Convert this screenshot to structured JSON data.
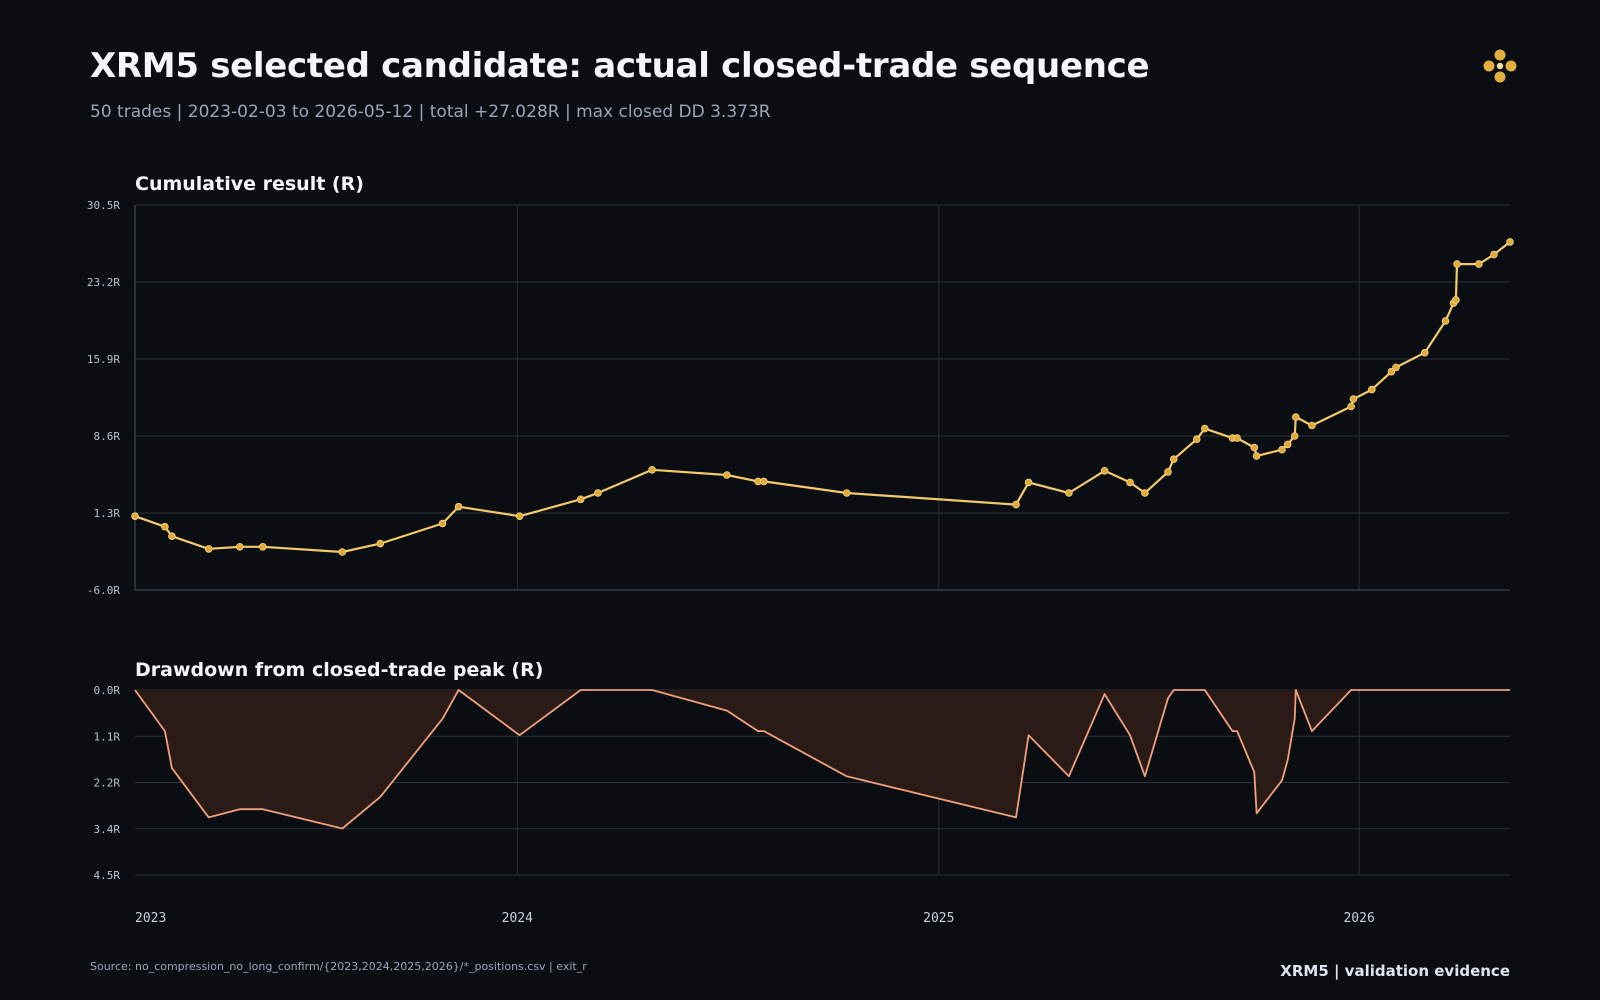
{
  "header": {
    "title": "XRM5 selected candidate: actual closed-trade sequence",
    "subtitle": "50 trades | 2023-02-03 to 2026-05-12 | total +27.028R | max closed DD 3.373R",
    "logo_icon": "four-dot-diamond-icon"
  },
  "footer": {
    "source": "Source: no_compression_no_long_confirm/{2023,2024,2025,2026}/*_positions.csv | exit_r",
    "badge": "XRM5 | validation evidence"
  },
  "colors": {
    "background": "#0a0d12",
    "equity_line": "#f3c96b",
    "equity_marker": "#e0a93a",
    "drawdown_line": "#f0a07a",
    "drawdown_fill": "#2a1b16",
    "grid": "#2a313b"
  },
  "chart_data": [
    {
      "type": "line",
      "title": "Cumulative result (R)",
      "ylim": [
        -6.0,
        30.5
      ],
      "y_ticks": [
        "30.5R",
        "23.2R",
        "15.9R",
        "8.6R",
        "1.3R",
        "-6.0R"
      ],
      "x_ticks": [
        "2023",
        "2024",
        "2025",
        "2026"
      ],
      "x_tick_dates": [
        "2023-01-01",
        "2024-01-01",
        "2025-01-01",
        "2026-01-01"
      ],
      "x_range": [
        "2023-02-03",
        "2026-05-12"
      ],
      "grid": true,
      "markers": true,
      "series": [
        {
          "x": [
            "2023-02-03",
            "2023-03-01",
            "2023-03-07",
            "2023-04-08",
            "2023-05-05",
            "2023-05-25",
            "2023-08-02",
            "2023-09-04",
            "2023-10-28",
            "2023-11-11",
            "2024-01-03",
            "2024-02-25",
            "2024-03-11",
            "2024-04-27",
            "2024-07-01",
            "2024-07-28",
            "2024-08-02",
            "2024-10-13",
            "2025-03-09",
            "2025-03-20",
            "2025-04-24",
            "2025-05-25",
            "2025-06-16",
            "2025-06-29",
            "2025-07-19",
            "2025-07-24",
            "2025-08-13",
            "2025-08-20",
            "2025-09-13",
            "2025-09-17",
            "2025-10-02",
            "2025-10-04",
            "2025-10-26",
            "2025-10-31",
            "2025-11-06",
            "2025-11-07",
            "2025-11-21",
            "2025-12-25",
            "2025-12-27",
            "2026-01-12",
            "2026-01-29",
            "2026-02-02",
            "2026-02-27",
            "2026-03-17",
            "2026-03-24",
            "2026-03-26",
            "2026-03-27",
            "2026-04-15",
            "2026-04-28",
            "2026-05-12"
          ],
          "y": [
            1.0,
            0.0,
            -0.9,
            -2.1,
            -1.9,
            -1.9,
            -2.4,
            -1.6,
            0.3,
            1.9,
            1.0,
            2.6,
            3.2,
            5.4,
            4.9,
            4.3,
            4.3,
            3.2,
            2.1,
            4.2,
            3.2,
            5.3,
            4.2,
            3.2,
            5.2,
            6.4,
            8.3,
            9.3,
            8.4,
            8.4,
            7.5,
            6.7,
            7.3,
            7.8,
            8.6,
            10.4,
            9.6,
            11.4,
            12.1,
            13.0,
            14.7,
            15.1,
            16.5,
            19.5,
            21.2,
            21.5,
            24.9,
            24.9,
            25.8,
            27.0
          ]
        }
      ]
    },
    {
      "type": "area",
      "title": "Drawdown from closed-trade peak (R)",
      "ylim": [
        0.0,
        4.5
      ],
      "y_inverted": true,
      "y_ticks": [
        "0.0R",
        "1.1R",
        "2.2R",
        "3.4R",
        "4.5R"
      ],
      "grid": true,
      "series": [
        {
          "x": [
            "2023-02-03",
            "2023-03-01",
            "2023-03-07",
            "2023-04-08",
            "2023-05-05",
            "2023-05-25",
            "2023-08-02",
            "2023-09-04",
            "2023-10-28",
            "2023-11-11",
            "2024-01-03",
            "2024-02-25",
            "2024-03-11",
            "2024-04-27",
            "2024-07-01",
            "2024-07-28",
            "2024-08-02",
            "2024-10-13",
            "2025-03-09",
            "2025-03-20",
            "2025-04-24",
            "2025-05-25",
            "2025-06-16",
            "2025-06-29",
            "2025-07-19",
            "2025-07-24",
            "2025-08-13",
            "2025-08-20",
            "2025-09-13",
            "2025-09-17",
            "2025-10-02",
            "2025-10-04",
            "2025-10-26",
            "2025-10-31",
            "2025-11-06",
            "2025-11-07",
            "2025-11-21",
            "2025-12-25",
            "2025-12-27",
            "2026-01-12",
            "2026-01-29",
            "2026-02-02",
            "2026-02-27",
            "2026-03-17",
            "2026-03-24",
            "2026-03-26",
            "2026-03-27",
            "2026-04-15",
            "2026-04-28",
            "2026-05-12"
          ],
          "y": [
            0.0,
            1.0,
            1.9,
            3.1,
            2.9,
            2.9,
            3.37,
            2.6,
            0.7,
            0.0,
            1.1,
            0.0,
            0.0,
            0.0,
            0.5,
            1.0,
            1.0,
            2.1,
            3.1,
            1.1,
            2.1,
            0.1,
            1.1,
            2.1,
            0.2,
            0.0,
            0.0,
            0.0,
            1.0,
            1.0,
            2.0,
            3.0,
            2.2,
            1.7,
            0.7,
            0.0,
            1.0,
            0.0,
            0.0,
            0.0,
            0.0,
            0.0,
            0.0,
            0.0,
            0.0,
            0.0,
            0.0,
            0.0,
            0.0,
            0.0
          ]
        }
      ]
    }
  ]
}
